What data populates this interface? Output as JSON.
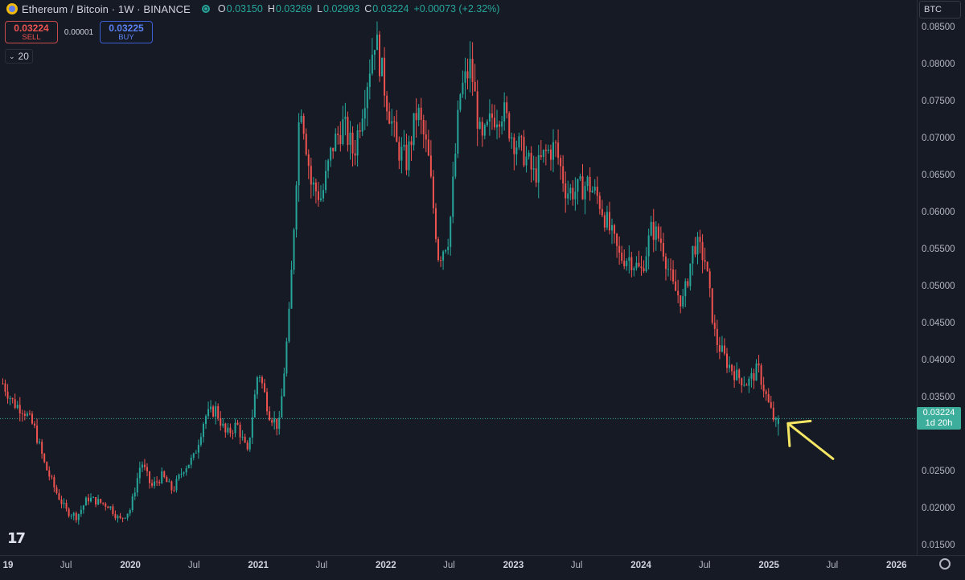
{
  "header": {
    "title": "Ethereum / Bitcoin · 1W · BINANCE",
    "ohlc": [
      {
        "k": "O",
        "v": "0.03150"
      },
      {
        "k": "H",
        "v": "0.03269"
      },
      {
        "k": "L",
        "v": "0.02993"
      },
      {
        "k": "C",
        "v": "0.03224"
      },
      {
        "k": "",
        "v": "+0.00073 (+2.32%)"
      }
    ]
  },
  "trade": {
    "sell_price": "0.03224",
    "sell_label": "SELL",
    "spread": "0.00001",
    "buy_price": "0.03225",
    "buy_label": "BUY"
  },
  "indicator": {
    "value": "20"
  },
  "price_axis": {
    "currency": "BTC",
    "ticks": [
      "0.08500",
      "0.08000",
      "0.07500",
      "0.07000",
      "0.06500",
      "0.06000",
      "0.05500",
      "0.05000",
      "0.04500",
      "0.04000",
      "0.03500",
      "0.02500",
      "0.02000",
      "0.01500"
    ],
    "last_price": "0.03224",
    "countdown": "1d 20h"
  },
  "time_axis": {
    "labels": [
      {
        "text": "19",
        "year": true
      },
      {
        "text": "Jul",
        "year": false
      },
      {
        "text": "2020",
        "year": true
      },
      {
        "text": "Jul",
        "year": false
      },
      {
        "text": "2021",
        "year": true
      },
      {
        "text": "Jul",
        "year": false
      },
      {
        "text": "2022",
        "year": true
      },
      {
        "text": "Jul",
        "year": false
      },
      {
        "text": "2023",
        "year": true
      },
      {
        "text": "Jul",
        "year": false
      },
      {
        "text": "2024",
        "year": true
      },
      {
        "text": "Jul",
        "year": false
      },
      {
        "text": "2025",
        "year": true
      },
      {
        "text": "Jul",
        "year": false
      },
      {
        "text": "2026",
        "year": true
      }
    ]
  },
  "logo_text": "17",
  "colors": {
    "up": "#26a69a",
    "down": "#ef5350",
    "background": "#161a25",
    "annotation_arrow": "#f5e663",
    "last_price_line": "#3dae9b"
  },
  "chart_data": {
    "type": "candlestick",
    "xlabel": "",
    "ylabel": "",
    "y_unit": "BTC",
    "ylim": [
      0.0138,
      0.0888
    ],
    "xlim": [
      "2018-12-24",
      "2026-02-28"
    ],
    "series": [
      {
        "values": [
          [
            "2019-01-01",
            0.037
          ],
          [
            "2019-02-01",
            0.0343
          ],
          [
            "2019-03-01",
            0.0335
          ],
          [
            "2019-04-01",
            0.031
          ],
          [
            "2019-05-01",
            0.026
          ],
          [
            "2019-06-01",
            0.0225
          ],
          [
            "2019-07-01",
            0.0198
          ],
          [
            "2019-08-01",
            0.019
          ],
          [
            "2019-09-01",
            0.0215
          ],
          [
            "2019-10-01",
            0.021
          ],
          [
            "2019-11-01",
            0.0205
          ],
          [
            "2019-12-01",
            0.0185
          ],
          [
            "2020-01-01",
            0.02
          ],
          [
            "2020-02-01",
            0.0265
          ],
          [
            "2020-03-01",
            0.023
          ],
          [
            "2020-04-01",
            0.0245
          ],
          [
            "2020-05-01",
            0.0225
          ],
          [
            "2020-06-01",
            0.0255
          ],
          [
            "2020-07-01",
            0.027
          ],
          [
            "2020-08-01",
            0.0325
          ],
          [
            "2020-09-01",
            0.0335
          ],
          [
            "2020-10-01",
            0.03
          ],
          [
            "2020-11-01",
            0.0315
          ],
          [
            "2020-12-01",
            0.0275
          ],
          [
            "2021-01-01",
            0.039
          ],
          [
            "2021-02-01",
            0.033
          ],
          [
            "2021-03-01",
            0.031
          ],
          [
            "2021-04-01",
            0.047
          ],
          [
            "2021-05-01",
            0.076
          ],
          [
            "2021-06-01",
            0.064
          ],
          [
            "2021-07-01",
            0.062
          ],
          [
            "2021-08-01",
            0.069
          ],
          [
            "2021-09-01",
            0.072
          ],
          [
            "2021-10-01",
            0.068
          ],
          [
            "2021-11-01",
            0.076
          ],
          [
            "2021-12-01",
            0.084
          ],
          [
            "2022-01-01",
            0.076
          ],
          [
            "2022-02-01",
            0.069
          ],
          [
            "2022-03-01",
            0.067
          ],
          [
            "2022-04-01",
            0.074
          ],
          [
            "2022-05-01",
            0.068
          ],
          [
            "2022-06-01",
            0.054
          ],
          [
            "2022-07-01",
            0.057
          ],
          [
            "2022-08-01",
            0.076
          ],
          [
            "2022-09-01",
            0.08
          ],
          [
            "2022-10-01",
            0.069
          ],
          [
            "2022-11-01",
            0.073
          ],
          [
            "2022-12-01",
            0.074
          ],
          [
            "2023-01-01",
            0.07
          ],
          [
            "2023-02-01",
            0.068
          ],
          [
            "2023-03-01",
            0.065
          ],
          [
            "2023-04-01",
            0.068
          ],
          [
            "2023-05-01",
            0.069
          ],
          [
            "2023-06-01",
            0.063
          ],
          [
            "2023-07-01",
            0.063
          ],
          [
            "2023-08-01",
            0.064
          ],
          [
            "2023-09-01",
            0.062
          ],
          [
            "2023-10-01",
            0.058
          ],
          [
            "2023-11-01",
            0.054
          ],
          [
            "2023-12-01",
            0.054
          ],
          [
            "2024-01-01",
            0.052
          ],
          [
            "2024-02-01",
            0.058
          ],
          [
            "2024-03-01",
            0.056
          ],
          [
            "2024-04-01",
            0.05
          ],
          [
            "2024-05-01",
            0.048
          ],
          [
            "2024-06-01",
            0.056
          ],
          [
            "2024-07-01",
            0.054
          ],
          [
            "2024-08-01",
            0.043
          ],
          [
            "2024-09-01",
            0.04
          ],
          [
            "2024-10-01",
            0.038
          ],
          [
            "2024-11-01",
            0.037
          ],
          [
            "2024-12-01",
            0.039
          ],
          [
            "2025-01-01",
            0.034
          ],
          [
            "2025-01-20",
            0.0315
          ],
          [
            "2025-01-28",
            0.0322
          ]
        ]
      }
    ],
    "last_close": 0.03224,
    "annotation": {
      "type": "arrow",
      "points_to": "last candle"
    }
  }
}
